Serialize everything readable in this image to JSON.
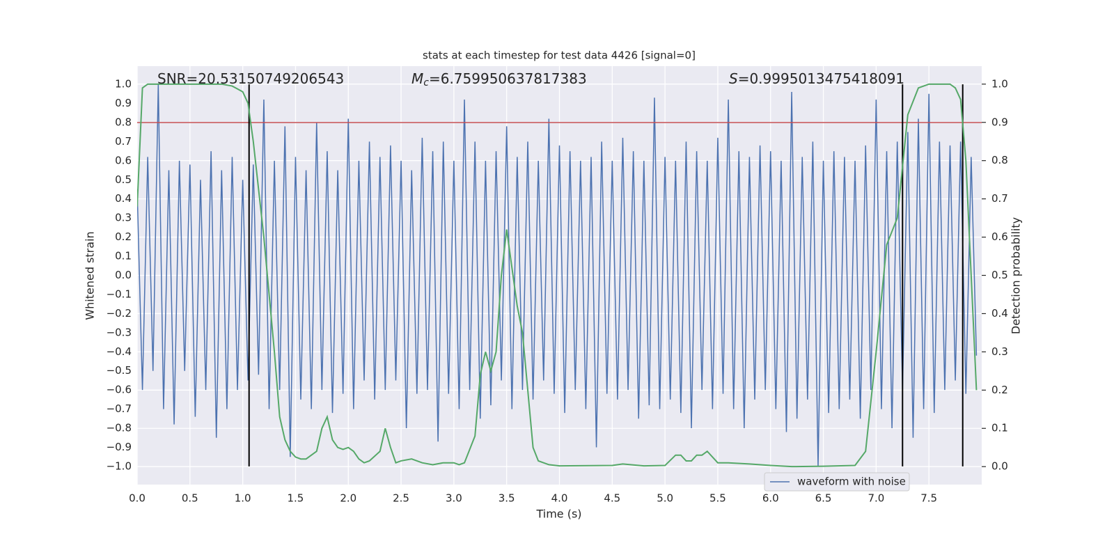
{
  "chart_data": {
    "type": "line",
    "title": "stats at each timestep for test data 4426 [signal=0]",
    "xlabel": "Time (s)",
    "ylabel": "Whitened strain",
    "y2label": "Detection probability",
    "xlim": [
      0,
      8
    ],
    "ylim": [
      -1.095,
      1.095
    ],
    "y2lim": [
      -0.047,
      1.047
    ],
    "grid": true,
    "legend": "lower right",
    "xticks": [
      {
        "value": 0,
        "label": "0.0"
      },
      {
        "value": 0.5,
        "label": "0.5"
      },
      {
        "value": 1,
        "label": "1.0"
      },
      {
        "value": 1.5,
        "label": "1.5"
      },
      {
        "value": 2,
        "label": "2.0"
      },
      {
        "value": 2.5,
        "label": "2.5"
      },
      {
        "value": 3,
        "label": "3.0"
      },
      {
        "value": 3.5,
        "label": "3.5"
      },
      {
        "value": 4,
        "label": "4.0"
      },
      {
        "value": 4.5,
        "label": "4.5"
      },
      {
        "value": 5,
        "label": "5.0"
      },
      {
        "value": 5.5,
        "label": "5.5"
      },
      {
        "value": 6,
        "label": "6.0"
      },
      {
        "value": 6.5,
        "label": "6.5"
      },
      {
        "value": 7,
        "label": "7.0"
      },
      {
        "value": 7.5,
        "label": "7.5"
      }
    ],
    "yticks": [
      {
        "value": 1,
        "label": "1.0"
      },
      {
        "value": 0.9,
        "label": "0.9"
      },
      {
        "value": 0.8,
        "label": "0.8"
      },
      {
        "value": 0.7,
        "label": "0.7"
      },
      {
        "value": 0.6,
        "label": "0.6"
      },
      {
        "value": 0.5,
        "label": "0.5"
      },
      {
        "value": 0.4,
        "label": "0.4"
      },
      {
        "value": 0.3,
        "label": "0.3"
      },
      {
        "value": 0.2,
        "label": "0.2"
      },
      {
        "value": 0.1,
        "label": "0.1"
      },
      {
        "value": 0,
        "label": "0.0"
      },
      {
        "value": -0.1,
        "label": "−0.1"
      },
      {
        "value": -0.2,
        "label": "−0.2"
      },
      {
        "value": -0.3,
        "label": "−0.3"
      },
      {
        "value": -0.4,
        "label": "−0.4"
      },
      {
        "value": -0.5,
        "label": "−0.5"
      },
      {
        "value": -0.6,
        "label": "−0.6"
      },
      {
        "value": -0.7,
        "label": "−0.7"
      },
      {
        "value": -0.8,
        "label": "−0.8"
      },
      {
        "value": -0.9,
        "label": "−0.9"
      },
      {
        "value": -1,
        "label": "−1.0"
      }
    ],
    "y2ticks": [
      {
        "value": 0,
        "label": "0.0"
      },
      {
        "value": 0.1,
        "label": "0.1"
      },
      {
        "value": 0.2,
        "label": "0.2"
      },
      {
        "value": 0.3,
        "label": "0.3"
      },
      {
        "value": 0.4,
        "label": "0.4"
      },
      {
        "value": 0.5,
        "label": "0.5"
      },
      {
        "value": 0.6,
        "label": "0.6"
      },
      {
        "value": 0.7,
        "label": "0.7"
      },
      {
        "value": 0.8,
        "label": "0.8"
      },
      {
        "value": 0.9,
        "label": "0.9"
      },
      {
        "value": 1,
        "label": "1.0"
      }
    ],
    "annotations": [
      {
        "text": "SNR=20.53150749206543"
      },
      {
        "symbol": "M",
        "subscript": "c",
        "text": "=6.759950637817383"
      },
      {
        "symbol": "S",
        "text": "=0.9995013475418091"
      }
    ],
    "hline": {
      "y": 0.8,
      "color": "#c44e52"
    },
    "vlines": {
      "x": [
        1.06,
        7.25,
        7.82
      ],
      "ymin": -1.0,
      "ymax": 1.0,
      "color": "#000000"
    },
    "series": [
      {
        "name": "waveform with noise",
        "color": "#4c72b0",
        "x": [
          0,
          0.05,
          0.1,
          0.15,
          0.2,
          0.25,
          0.3,
          0.35,
          0.4,
          0.45,
          0.5,
          0.55,
          0.6,
          0.65,
          0.7,
          0.75,
          0.8,
          0.85,
          0.9,
          0.95,
          1,
          1.05,
          1.1,
          1.15,
          1.2,
          1.25,
          1.3,
          1.35,
          1.4,
          1.45,
          1.5,
          1.55,
          1.6,
          1.65,
          1.7,
          1.75,
          1.8,
          1.85,
          1.9,
          1.95,
          2,
          2.05,
          2.1,
          2.15,
          2.2,
          2.25,
          2.3,
          2.35,
          2.4,
          2.45,
          2.5,
          2.55,
          2.6,
          2.65,
          2.7,
          2.75,
          2.8,
          2.85,
          2.9,
          2.95,
          3,
          3.05,
          3.1,
          3.15,
          3.2,
          3.25,
          3.3,
          3.35,
          3.4,
          3.45,
          3.5,
          3.55,
          3.6,
          3.65,
          3.7,
          3.75,
          3.8,
          3.85,
          3.9,
          3.95,
          4,
          4.05,
          4.1,
          4.15,
          4.2,
          4.25,
          4.3,
          4.35,
          4.4,
          4.45,
          4.5,
          4.55,
          4.6,
          4.65,
          4.7,
          4.75,
          4.8,
          4.85,
          4.9,
          4.95,
          5,
          5.05,
          5.1,
          5.15,
          5.2,
          5.25,
          5.3,
          5.35,
          5.4,
          5.45,
          5.5,
          5.55,
          5.6,
          5.65,
          5.7,
          5.75,
          5.8,
          5.85,
          5.9,
          5.95,
          6,
          6.05,
          6.1,
          6.15,
          6.2,
          6.25,
          6.3,
          6.35,
          6.4,
          6.45,
          6.5,
          6.55,
          6.6,
          6.65,
          6.7,
          6.75,
          6.8,
          6.85,
          6.9,
          6.95,
          7,
          7.05,
          7.1,
          7.15,
          7.2,
          7.25,
          7.3,
          7.35,
          7.4,
          7.45,
          7.5,
          7.55,
          7.6,
          7.65,
          7.7,
          7.75,
          7.8,
          7.85,
          7.9,
          7.95
        ],
        "values": [
          0.45,
          -0.6,
          0.62,
          -0.5,
          1.0,
          -0.7,
          0.55,
          -0.78,
          0.6,
          -0.5,
          0.58,
          -0.74,
          0.5,
          -0.6,
          0.65,
          -0.85,
          0.55,
          -0.7,
          0.62,
          -0.6,
          0.5,
          -0.55,
          0.58,
          -0.52,
          0.92,
          -0.7,
          0.6,
          -0.6,
          0.78,
          -0.95,
          0.62,
          -0.65,
          0.55,
          -0.7,
          0.8,
          -0.6,
          0.65,
          -0.72,
          0.55,
          -0.62,
          0.82,
          -0.7,
          0.6,
          -0.55,
          0.7,
          -0.65,
          0.62,
          -0.6,
          0.68,
          -0.55,
          0.6,
          -0.8,
          0.55,
          -0.62,
          0.72,
          -0.6,
          0.65,
          -0.87,
          0.7,
          -0.62,
          0.6,
          -0.7,
          0.92,
          -0.6,
          0.7,
          -0.75,
          0.6,
          -0.68,
          0.65,
          -0.55,
          0.78,
          -0.7,
          0.62,
          -0.6,
          0.7,
          -0.65,
          0.6,
          -0.55,
          0.82,
          -0.62,
          0.68,
          -0.72,
          0.65,
          -0.6,
          0.6,
          -0.7,
          0.62,
          -0.9,
          0.7,
          -0.62,
          0.6,
          -0.65,
          0.72,
          -0.6,
          0.65,
          -0.75,
          0.6,
          -0.68,
          0.93,
          -0.7,
          0.62,
          -0.65,
          0.6,
          -0.72,
          0.7,
          -0.8,
          0.65,
          -0.6,
          0.6,
          -0.7,
          0.72,
          -0.62,
          0.92,
          -0.7,
          0.65,
          -0.8,
          0.62,
          -0.65,
          0.68,
          -0.6,
          0.65,
          -0.7,
          0.6,
          -0.82,
          0.96,
          -0.75,
          0.62,
          -0.65,
          0.7,
          -1.0,
          0.6,
          -0.72,
          0.65,
          -0.7,
          0.62,
          -0.65,
          0.6,
          -0.75,
          0.68,
          -0.6,
          0.92,
          -0.7,
          0.65,
          -0.8,
          0.7,
          -0.6,
          0.75,
          -0.85,
          0.82,
          -0.7,
          0.95,
          -0.72,
          0.7,
          -0.6,
          0.68,
          -0.55,
          0.7,
          -0.62,
          0.62,
          -0.42
        ]
      },
      {
        "color": "#55a868",
        "axis": "y2",
        "x": [
          0,
          0.05,
          0.1,
          0.8,
          0.9,
          1,
          1.05,
          1.1,
          1.2,
          1.3,
          1.35,
          1.4,
          1.45,
          1.5,
          1.55,
          1.6,
          1.7,
          1.75,
          1.8,
          1.85,
          1.9,
          1.95,
          2,
          2.05,
          2.1,
          2.15,
          2.2,
          2.3,
          2.35,
          2.4,
          2.45,
          2.5,
          2.6,
          2.7,
          2.8,
          2.9,
          3,
          3.05,
          3.1,
          3.2,
          3.25,
          3.3,
          3.35,
          3.4,
          3.45,
          3.5,
          3.55,
          3.6,
          3.65,
          3.7,
          3.75,
          3.8,
          3.9,
          4,
          4.5,
          4.6,
          4.8,
          5,
          5.1,
          5.15,
          5.2,
          5.25,
          5.3,
          5.35,
          5.4,
          5.5,
          5.6,
          5.8,
          6,
          6.2,
          6.5,
          6.8,
          6.9,
          7,
          7.1,
          7.2,
          7.3,
          7.4,
          7.5,
          7.7,
          7.75,
          7.8,
          7.85,
          7.9,
          7.95
        ],
        "values": [
          0.68,
          0.99,
          1.0,
          1.0,
          0.995,
          0.98,
          0.95,
          0.85,
          0.6,
          0.3,
          0.13,
          0.07,
          0.04,
          0.025,
          0.02,
          0.02,
          0.04,
          0.1,
          0.13,
          0.07,
          0.05,
          0.045,
          0.05,
          0.04,
          0.02,
          0.01,
          0.015,
          0.04,
          0.1,
          0.05,
          0.01,
          0.015,
          0.02,
          0.01,
          0.005,
          0.01,
          0.01,
          0.005,
          0.01,
          0.08,
          0.24,
          0.3,
          0.25,
          0.3,
          0.5,
          0.62,
          0.52,
          0.42,
          0.35,
          0.2,
          0.05,
          0.015,
          0.005,
          0.002,
          0.003,
          0.007,
          0.002,
          0.003,
          0.03,
          0.03,
          0.015,
          0.015,
          0.03,
          0.03,
          0.04,
          0.01,
          0.01,
          0.007,
          0.003,
          0.0,
          0.001,
          0.003,
          0.04,
          0.3,
          0.58,
          0.65,
          0.92,
          0.99,
          1.0,
          1.0,
          0.99,
          0.96,
          0.8,
          0.5,
          0.2
        ]
      }
    ]
  }
}
